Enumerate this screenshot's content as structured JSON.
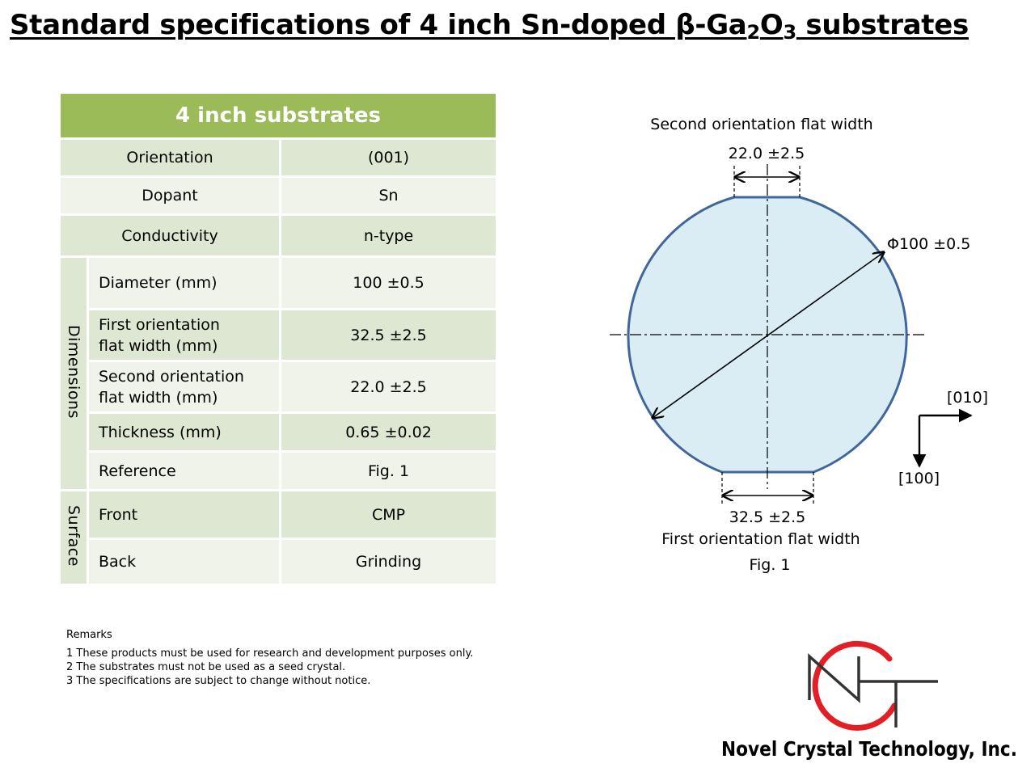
{
  "title": {
    "prefix": "Standard specifications of 4 inch Sn-doped β-Ga",
    "sub1": "2",
    "mid": "O",
    "sub2": "3",
    "suffix": " substrates"
  },
  "table": {
    "header": "4 inch substrates",
    "orientation": {
      "label": "Orientation",
      "value": "(001)"
    },
    "dopant": {
      "label": "Dopant",
      "value": "Sn"
    },
    "conductivity": {
      "label": "Conductivity",
      "value": "n-type"
    },
    "dimensions_group": "Dimensions",
    "diameter": {
      "label": "Diameter (mm)",
      "value": "100 ±0.5"
    },
    "first_flat": {
      "label_line1": "First orientation",
      "label_line2": "flat width (mm)",
      "value": "32.5 ±2.5"
    },
    "second_flat": {
      "label_line1": "Second orientation",
      "label_line2": "flat width (mm)",
      "value": "22.0 ±2.5"
    },
    "thickness": {
      "label": "Thickness (mm)",
      "value": "0.65 ±0.02"
    },
    "reference": {
      "label": "Reference",
      "value": "Fig. 1"
    },
    "surface_group": "Surface",
    "front": {
      "label": "Front",
      "value": "CMP"
    },
    "back": {
      "label": "Back",
      "value": "Grinding"
    }
  },
  "remarks": {
    "title": "Remarks",
    "items": [
      "1 These products must be used for research and development purposes only.",
      "2 The substrates must not be used as a seed crystal.",
      "3 The specifications are subject to change without notice."
    ]
  },
  "figure": {
    "second_flat_label": "Second orientation flat width",
    "second_flat_value": "22.0 ±2.5",
    "diameter_label": "Φ100 ±0.5",
    "first_flat_value": "32.5 ±2.5",
    "first_flat_label": "First orientation flat width",
    "caption": "Fig. 1",
    "axis_010": "[010]",
    "axis_100": "[100]",
    "wafer_fill": "#daedf4",
    "wafer_stroke": "#41679a"
  },
  "company": {
    "name": "Novel Crystal Technology, Inc.",
    "logo_accent": "#e31e24"
  }
}
